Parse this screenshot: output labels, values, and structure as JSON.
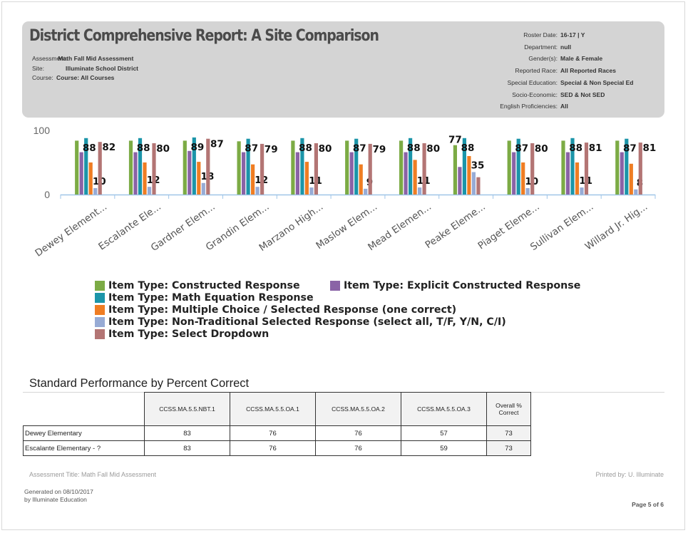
{
  "header": {
    "title": "District Comprehensive Report: A Site Comparison",
    "assessment_label": "Assessment:",
    "assessment_value": "Math Fall Mid Assessment",
    "site_label": "Site:",
    "site_value": "Illuminate School District",
    "course_label": "Course:",
    "course_value": "Course: All Courses",
    "right_fields": [
      {
        "label": "Roster Date:",
        "value": "16-17 | Y"
      },
      {
        "label": "Department:",
        "value": "null"
      },
      {
        "label": "Gender(s):",
        "value": "Male & Female"
      },
      {
        "label": "Reported Race:",
        "value": "All Reported Races"
      },
      {
        "label": "Special Education:",
        "value": "Special & Non Special Ed"
      },
      {
        "label": "Socio-Economic:",
        "value": "SED & Not SED"
      },
      {
        "label": "English Proficiencies:",
        "value": "All"
      }
    ]
  },
  "chart_data": {
    "type": "bar",
    "ylim": [
      0,
      100
    ],
    "yticks": [
      0,
      100
    ],
    "categories": [
      "Dewey Element...",
      "Escalante Ele...",
      "Gardner Elem...",
      "Grandin Elem...",
      "Marzano High...",
      "Maslow Elem...",
      "Mead Elemen...",
      "Peake Eleme...",
      "Piaget Eleme...",
      "Sullivan Elem...",
      "Willard Jr. Hig..."
    ],
    "series": [
      {
        "name": "Item Type: Constructed Response",
        "color": "#7cab45",
        "values": [
          84,
          84,
          84,
          83,
          84,
          84,
          84,
          77,
          84,
          84,
          84
        ],
        "labels": [
          null,
          null,
          null,
          null,
          null,
          null,
          null,
          "77",
          null,
          null,
          null
        ]
      },
      {
        "name": "Item Type: Explicit Constructed Response",
        "color": "#8a63a6",
        "values": [
          66,
          66,
          68,
          66,
          66,
          66,
          66,
          43,
          66,
          66,
          66
        ],
        "labels": [
          null,
          null,
          null,
          null,
          null,
          null,
          null,
          null,
          null,
          null,
          null
        ]
      },
      {
        "name": "Item Type: Math Equation Response",
        "color": "#1b95a9",
        "values": [
          88,
          88,
          89,
          87,
          88,
          87,
          88,
          88,
          87,
          88,
          87
        ],
        "labels": [
          "88",
          "88",
          "89",
          "87",
          "88",
          "87",
          "88",
          "88",
          "87",
          "88",
          "87"
        ]
      },
      {
        "name": "Item Type: Multiple Choice / Selected Response (one correct)",
        "color": "#ef7d23",
        "values": [
          50,
          50,
          51,
          47,
          51,
          47,
          54,
          60,
          50,
          50,
          48
        ],
        "labels": [
          null,
          null,
          null,
          null,
          null,
          null,
          null,
          null,
          null,
          null,
          null
        ]
      },
      {
        "name": "Item Type: Non-Traditional Selected Response (select all, T/F, Y/N, C/I)",
        "color": "#97abd5",
        "values": [
          10,
          12,
          18,
          12,
          11,
          9,
          11,
          35,
          10,
          11,
          8
        ],
        "labels": [
          "10",
          "12",
          "18",
          "12",
          "11",
          "9",
          "11",
          "35",
          "10",
          "11",
          "8"
        ]
      },
      {
        "name": "Item Type: Select Dropdown",
        "color": "#b37574",
        "values": [
          82,
          80,
          87,
          79,
          80,
          79,
          80,
          27,
          80,
          81,
          81
        ],
        "labels": [
          "82",
          "80",
          "87",
          "79",
          "80",
          "79",
          "80",
          null,
          "80",
          "81",
          "81"
        ]
      }
    ],
    "legend": "bottom"
  },
  "table": {
    "title": "Standard Performance by Percent Correct",
    "headers": [
      "CCSS.MA.5.5.NBT.1",
      "CCSS.MA.5.5.OA.1",
      "CCSS.MA.5.5.OA.2",
      "CCSS.MA.5.5.OA.3",
      "Overall % Correct"
    ],
    "rows": [
      {
        "name": "Dewey Elementary",
        "values": [
          "83",
          "76",
          "76",
          "57",
          "73"
        ]
      },
      {
        "name": "Escalante Elementary - ?",
        "values": [
          "83",
          "76",
          "76",
          "59",
          "73"
        ]
      }
    ]
  },
  "footer": {
    "assessment_title": "Assessment Title: Math Fall Mid Assessment",
    "printed_by": "Printed by: U. Illuminate",
    "generated_on": "Generated on 08/10/2017",
    "generated_by": "by Illuminate Education",
    "page": "Page 5 of 6"
  }
}
